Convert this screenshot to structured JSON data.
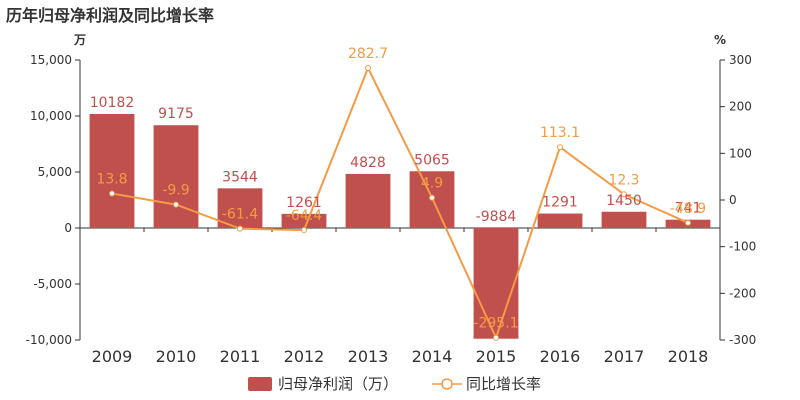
{
  "chart_data": {
    "type": "bar",
    "title": "历年归母净利润及同比增长率",
    "categories": [
      "2009",
      "2010",
      "2011",
      "2012",
      "2013",
      "2014",
      "2015",
      "2016",
      "2017",
      "2018"
    ],
    "left_axis": {
      "unit": "万",
      "ylim": [
        -10000,
        15000
      ],
      "ticks": [
        -10000,
        -5000,
        0,
        5000,
        10000,
        15000
      ],
      "tick_labels": [
        "-10,000",
        "-5,000",
        "0",
        "5,000",
        "10,000",
        "15,000"
      ]
    },
    "right_axis": {
      "unit": "%",
      "ylim": [
        -300,
        300
      ],
      "ticks": [
        -300,
        -200,
        -100,
        0,
        100,
        200,
        300
      ],
      "tick_labels": [
        "-300",
        "-200",
        "-100",
        "0",
        "100",
        "200",
        "300"
      ]
    },
    "series": [
      {
        "name": "归母净利润（万）",
        "type": "bar",
        "axis": "left",
        "color": "#c0504d",
        "values": [
          10182,
          9175,
          3544,
          1261,
          4828,
          5065,
          -9884,
          1291,
          1450,
          741
        ],
        "labels": [
          "10182",
          "9175",
          "3544",
          "1261",
          "4828",
          "5065",
          "-9884",
          "1291",
          "1450",
          "741"
        ]
      },
      {
        "name": "同比增长率",
        "type": "line",
        "axis": "right",
        "color": "#f59a45",
        "values": [
          13.8,
          -9.9,
          -61.4,
          -64.4,
          282.7,
          4.9,
          -295.1,
          113.1,
          12.3,
          -48.9
        ],
        "labels": [
          "13.8",
          "-9.9",
          "-61.4",
          "-64.4",
          "282.7",
          "4.9",
          "-295.1",
          "113.1",
          "12.3",
          "-48.9"
        ]
      }
    ],
    "grid": false,
    "legend_position": "bottom"
  }
}
